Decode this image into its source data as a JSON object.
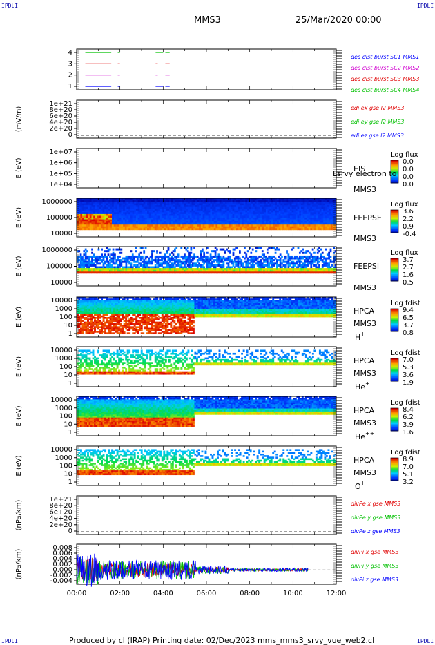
{
  "corners": {
    "tl": "IPDLI",
    "tr": "IPDLI",
    "bl": "IPDLI",
    "br": "IPDLI"
  },
  "header": {
    "title": "MMS3",
    "datetime": "25/Mar/2020 00:00"
  },
  "footer": "Produced by cl (IRAP)   Printing date: 02/Dec/2023   mms_mms3_srvy_vue_web2.cl",
  "chart_data": [
    {
      "type": "line",
      "name": "burst-availability",
      "yticks": [
        "4",
        "3",
        "2",
        "1"
      ],
      "legend": [
        {
          "text": "des dist burst SC1 MMS1",
          "color": "#0000ff"
        },
        {
          "text": "des dist burst SC2 MMS2",
          "color": "#d000d0"
        },
        {
          "text": "des dist burst SC3 MMS3",
          "color": "#e00000"
        },
        {
          "text": "des dist burst SC4 MMS4",
          "color": "#00c000"
        }
      ],
      "series": [
        {
          "name": "4",
          "color": "#00c000",
          "segments": [
            [
              0.4,
              1.6
            ],
            [
              1.9,
              2.0
            ],
            [
              3.65,
              4.0
            ],
            [
              4.1,
              4.3
            ]
          ]
        },
        {
          "name": "3",
          "color": "#e00000",
          "segments": [
            [
              0.4,
              1.6
            ],
            [
              1.9,
              2.0
            ],
            [
              3.65,
              3.75
            ],
            [
              4.1,
              4.3
            ]
          ]
        },
        {
          "name": "2",
          "color": "#d000d0",
          "segments": [
            [
              0.4,
              1.6
            ],
            [
              1.9,
              2.0
            ],
            [
              3.65,
              3.75
            ],
            [
              4.1,
              4.3
            ]
          ]
        },
        {
          "name": "1",
          "color": "#0000ff",
          "segments": [
            [
              0.4,
              1.6
            ],
            [
              1.9,
              2.0
            ],
            [
              3.65,
              4.0
            ],
            [
              4.1,
              4.3
            ]
          ]
        }
      ]
    },
    {
      "type": "line",
      "name": "edi-E",
      "ylabel": "(mV/m)",
      "yticks": [
        "1e+21",
        "8e+20",
        "6e+20",
        "4e+20",
        "2e+20",
        "0"
      ],
      "legend": [
        {
          "text": "edi ex gse l2 MMS3",
          "color": "#e00000"
        },
        {
          "text": "edi ey gse l2 MMS3",
          "color": "#00c000"
        },
        {
          "text": "edi ez gse l2 MMS3",
          "color": "#0000ff"
        }
      ]
    },
    {
      "type": "heatmap",
      "name": "EIS",
      "ylabel": "E (eV)",
      "yticks": [
        "1e+07",
        "1e+06",
        "1e+05",
        "1e+04"
      ],
      "labels": [
        "EIS",
        "MMS3"
      ],
      "overlay": "Lsrvy electron to",
      "cbar_title": "Log flux",
      "cbar_ticks": [
        "0.0",
        "0.0",
        "0.0",
        "0.0"
      ]
    },
    {
      "type": "heatmap",
      "name": "FEEPSE",
      "ylabel": "E (eV)",
      "yticks": [
        "1000000",
        "100000",
        "10000"
      ],
      "labels": [
        "FEEPSE",
        "MMS3"
      ],
      "cbar_title": "Log flux",
      "cbar_ticks": [
        "3.6",
        "2.2",
        "0.9",
        "-0.4"
      ]
    },
    {
      "type": "heatmap",
      "name": "FEEPSI",
      "ylabel": "E (eV)",
      "yticks": [
        "1000000",
        "100000",
        "10000"
      ],
      "labels": [
        "FEEPSI",
        "MMS3"
      ],
      "cbar_title": "Log flux",
      "cbar_ticks": [
        "3.7",
        "2.7",
        "1.6",
        "0.5"
      ]
    },
    {
      "type": "heatmap",
      "name": "HPCA-H",
      "ylabel": "E (eV)",
      "yticks": [
        "10000",
        "1000",
        "100",
        "10",
        "1"
      ],
      "labels": [
        "HPCA",
        "MMS3"
      ],
      "species": "H",
      "charge": "+",
      "cbar_title": "Log fdist",
      "cbar_ticks": [
        "9.4",
        "6.5",
        "3.7",
        "0.8"
      ]
    },
    {
      "type": "heatmap",
      "name": "HPCA-He",
      "ylabel": "E (eV)",
      "yticks": [
        "10000",
        "1000",
        "100",
        "10",
        "1"
      ],
      "labels": [
        "HPCA",
        "MMS3"
      ],
      "species": "He",
      "charge": "+",
      "cbar_title": "Log fdist",
      "cbar_ticks": [
        "7.0",
        "5.3",
        "3.6",
        "1.9"
      ]
    },
    {
      "type": "heatmap",
      "name": "HPCA-He2",
      "ylabel": "E (eV)",
      "yticks": [
        "10000",
        "1000",
        "100",
        "10",
        "1"
      ],
      "labels": [
        "HPCA",
        "MMS3"
      ],
      "species": "He",
      "charge": "++",
      "cbar_title": "Log fdist",
      "cbar_ticks": [
        "8.4",
        "6.2",
        "3.9",
        "1.6"
      ]
    },
    {
      "type": "heatmap",
      "name": "HPCA-O",
      "ylabel": "E (eV)",
      "yticks": [
        "10000",
        "1000",
        "100",
        "10",
        "1"
      ],
      "labels": [
        "HPCA",
        "MMS3"
      ],
      "species": "O",
      "charge": "+",
      "cbar_title": "Log fdist",
      "cbar_ticks": [
        "8.9",
        "7.0",
        "5.1",
        "3.2"
      ]
    },
    {
      "type": "line",
      "name": "divPe",
      "ylabel": "(nPa/km)",
      "yticks": [
        "1e+21",
        "8e+20",
        "6e+20",
        "4e+20",
        "2e+20",
        "0"
      ],
      "legend": [
        {
          "text": "divPe x gse MMS3",
          "color": "#e00000"
        },
        {
          "text": "divPe y gse MMS3",
          "color": "#00c000"
        },
        {
          "text": "divPe z gse MMS3",
          "color": "#0000ff"
        }
      ]
    },
    {
      "type": "line",
      "name": "divPi",
      "ylabel": "(nPa/km)",
      "yticks": [
        "0.008",
        "0.006",
        "0.004",
        "0.002",
        "0.000",
        "-0.002",
        "-0.004"
      ],
      "ylim": [
        -0.005,
        0.009
      ],
      "legend": [
        {
          "text": "divPi x gse MMS3",
          "color": "#e00000"
        },
        {
          "text": "divPi y gse MMS3",
          "color": "#00c000"
        },
        {
          "text": "divPi z gse MMS3",
          "color": "#0000ff"
        }
      ]
    }
  ],
  "xaxis": {
    "ticks": [
      "00:00",
      "02:00",
      "04:00",
      "06:00",
      "08:00",
      "10:00",
      "12:00"
    ],
    "range_hours": [
      0,
      12
    ]
  }
}
